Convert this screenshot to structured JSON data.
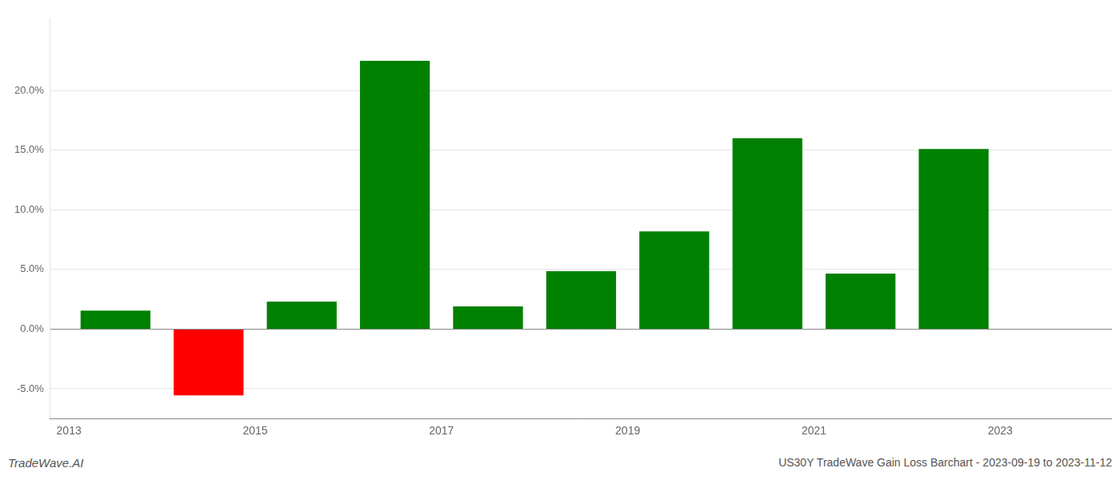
{
  "chart_data": {
    "type": "bar",
    "x": [
      2013.5,
      2014.5,
      2015.5,
      2016.5,
      2017.5,
      2018.5,
      2019.5,
      2020.5,
      2021.5,
      2022.5
    ],
    "values": [
      1.55,
      -5.55,
      2.3,
      22.5,
      1.9,
      4.85,
      8.2,
      16.0,
      4.65,
      15.1
    ],
    "colors": [
      "#008000",
      "#ff0000",
      "#008000",
      "#008000",
      "#008000",
      "#008000",
      "#008000",
      "#008000",
      "#008000",
      "#008000"
    ],
    "xlim": [
      2012.8,
      2024.2
    ],
    "xticks": [
      2013,
      2015,
      2017,
      2019,
      2021,
      2023
    ],
    "ylim": [
      -7.5,
      26.0
    ],
    "yticks": [
      {
        "value": -5.0,
        "label": "-5.0%"
      },
      {
        "value": 0.0,
        "label": "0.0%"
      },
      {
        "value": 5.0,
        "label": "5.0%"
      },
      {
        "value": 10.0,
        "label": "10.0%"
      },
      {
        "value": 15.0,
        "label": "15.0%"
      },
      {
        "value": 20.0,
        "label": "20.0%"
      }
    ],
    "grid": "y",
    "annotations": [
      "TradeWave.AI",
      "US30Y TradeWave Gain Loss Barchart - 2023-09-19 to 2023-11-12"
    ]
  }
}
